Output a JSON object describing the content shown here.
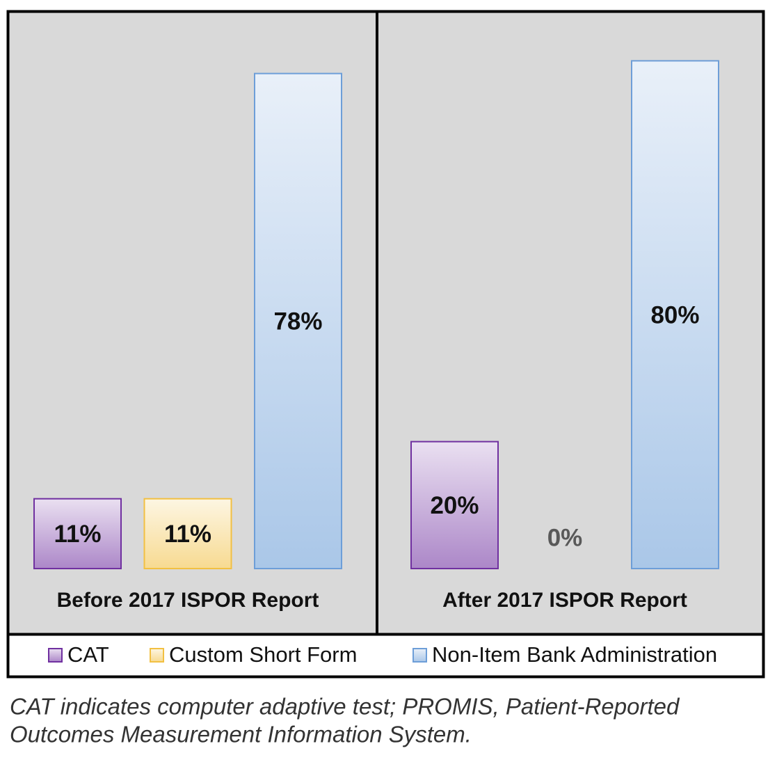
{
  "chart_data": {
    "type": "bar",
    "categories": [
      "Before 2017 ISPOR Report",
      "After 2017 ISPOR Report"
    ],
    "series": [
      {
        "name": "CAT",
        "color": "#7030a0",
        "values": [
          11,
          20
        ],
        "value_labels": [
          "11%",
          "20%"
        ]
      },
      {
        "name": "Custom Short Form",
        "color": "#f2c042",
        "values": [
          11,
          0
        ],
        "value_labels": [
          "11%",
          "0%"
        ]
      },
      {
        "name": "Non-Item Bank Administration",
        "color": "#6d9ed8",
        "values": [
          78,
          80
        ],
        "value_labels": [
          "78%",
          "80%"
        ]
      }
    ],
    "caption": [
      "CAT indicates computer adaptive test; PROMIS, Patient-Reported",
      "Outcomes Measurement Information System."
    ]
  }
}
